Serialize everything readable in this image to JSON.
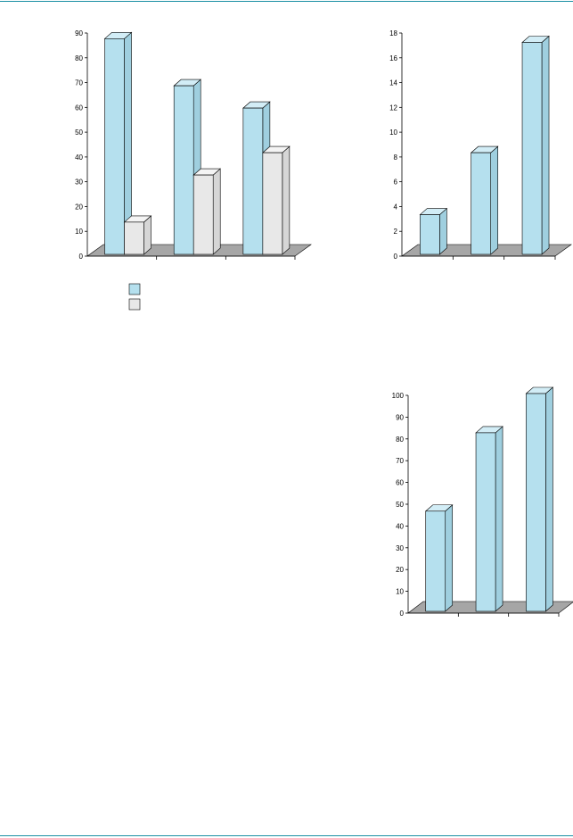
{
  "colors": {
    "rule": "#1a8fa3",
    "series1": "#b5e0ee",
    "series1_side": "#9fcfdf",
    "series1_top": "#d2edf6",
    "series2": "#e8e8e8",
    "series2_side": "#d6d6d6",
    "series2_top": "#f4f4f4",
    "floor": "#a6a6a6",
    "axis": "#000000"
  },
  "legend": {
    "entries": [
      {
        "label": "",
        "color": "#b5e0ee"
      },
      {
        "label": "",
        "color": "#e8e8e8"
      }
    ]
  },
  "chart_data": [
    {
      "type": "bar",
      "style": "3d-column",
      "categories": [
        "",
        "",
        ""
      ],
      "series": [
        {
          "values": [
            87,
            68,
            59
          ],
          "color": "#b5e0ee"
        },
        {
          "values": [
            13,
            32,
            41
          ],
          "color": "#e8e8e8"
        }
      ],
      "yticks": [
        "0",
        "10",
        "20",
        "30",
        "40",
        "50",
        "60",
        "70",
        "80",
        "90"
      ],
      "ylim": [
        0,
        90
      ],
      "grid": false,
      "legend": "bottom-left"
    },
    {
      "type": "bar",
      "style": "3d-column",
      "categories": [
        "",
        "",
        ""
      ],
      "series": [
        {
          "values": [
            3.2,
            8.2,
            17.1
          ],
          "color": "#b5e0ee"
        }
      ],
      "yticks": [
        "0",
        "2",
        "4",
        "6",
        "8",
        "10",
        "12",
        "14",
        "16",
        "18"
      ],
      "ylim": [
        0,
        18
      ],
      "grid": false
    },
    {
      "type": "bar",
      "style": "3d-column",
      "categories": [
        "",
        "",
        ""
      ],
      "series": [
        {
          "values": [
            46,
            82,
            100
          ],
          "color": "#b5e0ee"
        }
      ],
      "yticks": [
        "0",
        "10",
        "20",
        "30",
        "40",
        "50",
        "60",
        "70",
        "80",
        "90",
        "100"
      ],
      "ylim": [
        0,
        100
      ],
      "grid": false
    }
  ]
}
